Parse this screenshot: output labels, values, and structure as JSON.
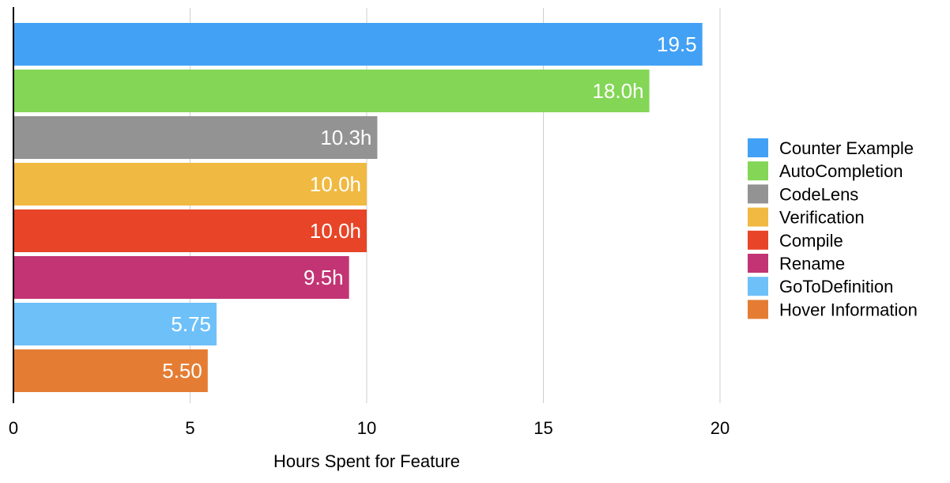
{
  "chart_data": {
    "type": "bar",
    "orientation": "horizontal",
    "categories": [
      "Counter Example",
      "AutoCompletion",
      "CodeLens",
      "Verification",
      "Compile",
      "Rename",
      "GoToDefinition",
      "Hover Information"
    ],
    "values": [
      19.5,
      18.0,
      10.3,
      10.0,
      10.0,
      9.5,
      5.75,
      5.5
    ],
    "value_labels": [
      "19.5",
      "18.0h",
      "10.3h",
      "10.0h",
      "10.0h",
      "9.5h",
      "5.75",
      "5.50"
    ],
    "colors": [
      "#42a1f5",
      "#83d656",
      "#939393",
      "#f0b942",
      "#e84427",
      "#c23474",
      "#6ec0f9",
      "#e47d33"
    ],
    "xlabel": "Hours Spent for Feature",
    "ylabel": "",
    "title": "",
    "xlim": [
      0,
      20
    ],
    "x_ticks": [
      0,
      5,
      10,
      15,
      20
    ],
    "x_tick_labels": [
      "0",
      "5",
      "10",
      "15",
      "20"
    ],
    "grid": "vertical",
    "legend": "right"
  }
}
